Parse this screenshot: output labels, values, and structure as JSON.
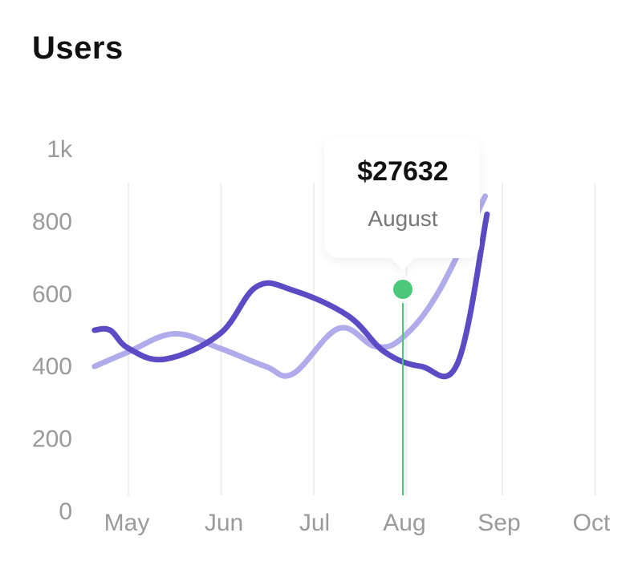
{
  "header": {
    "title": "Users"
  },
  "tooltip": {
    "value": "$27632",
    "label": "August"
  },
  "colors": {
    "series_primary": "#5b4bc4",
    "series_secondary": "#b0acec",
    "marker": "#4cc87a",
    "grid": "#eeeeee",
    "tick": "#9a9a9a"
  },
  "chart_data": {
    "type": "line",
    "title": "Users",
    "xlabel": "",
    "ylabel": "",
    "x_ticks": [
      "May",
      "Jun",
      "Jul",
      "Aug",
      "Sep",
      "Oct"
    ],
    "y_ticks": [
      "0",
      "200",
      "400",
      "600",
      "800",
      "1k"
    ],
    "x_range": [
      4.63,
      9.0
    ],
    "ylim": [
      0,
      1000
    ],
    "grid": "vertical",
    "series": [
      {
        "name": "primary",
        "color": "#5b4bc4",
        "x": [
          4.63,
          4.8,
          5.0,
          5.4,
          6.0,
          6.4,
          6.8,
          7.4,
          7.8,
          8.2,
          8.6,
          8.92
        ],
        "y": [
          500,
          500,
          450,
          420,
          490,
          620,
          610,
          540,
          440,
          400,
          410,
          820
        ]
      },
      {
        "name": "secondary",
        "color": "#b0acec",
        "x": [
          4.63,
          5.0,
          5.5,
          6.0,
          6.5,
          6.8,
          7.3,
          7.7,
          8.0,
          8.4,
          8.9
        ],
        "y": [
          400,
          440,
          490,
          450,
          400,
          380,
          505,
          455,
          480,
          610,
          870
        ]
      }
    ],
    "highlight": {
      "x": 8.0,
      "y": 610,
      "value": "$27632",
      "label": "August"
    }
  }
}
